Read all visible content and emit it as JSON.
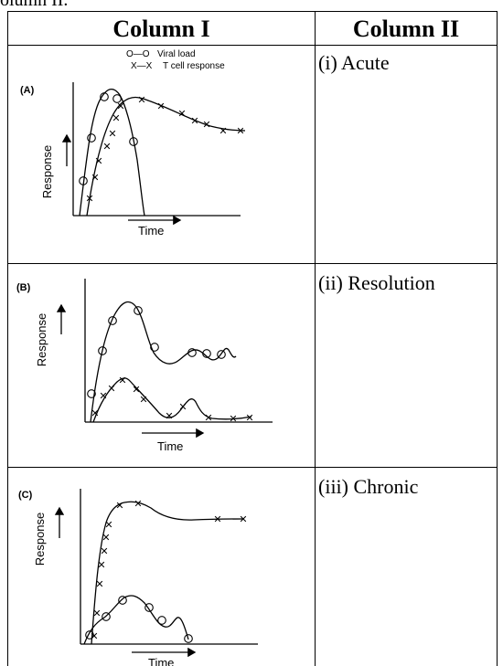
{
  "top_text": "olumn II.",
  "headers": {
    "col1": "Column I",
    "col2": "Column II"
  },
  "column2": [
    "(i)  Acute",
    "(ii)  Resolution",
    "(iii)  Chronic"
  ],
  "legend": {
    "viral_symbol": "O—O",
    "viral_label": "Viral load",
    "tcell_symbol": "X—X",
    "tcell_label": "T cell response"
  },
  "panels": [
    {
      "label": "(A)",
      "ylabel": "Response",
      "xlabel": "Time"
    },
    {
      "label": "(B)",
      "ylabel": "Response",
      "xlabel": "Time"
    },
    {
      "label": "(C)",
      "ylabel": "Response",
      "xlabel": "Time"
    }
  ],
  "colors": {
    "ink": "#000000",
    "background": "#ffffff"
  }
}
